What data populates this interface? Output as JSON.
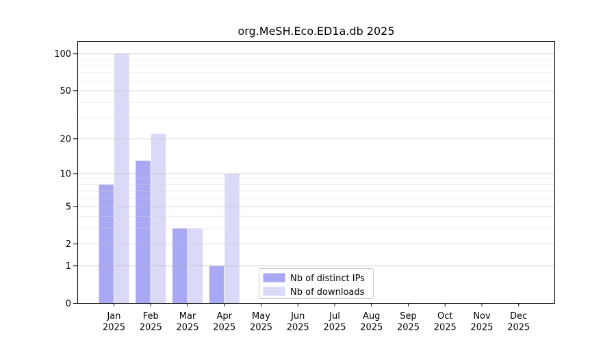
{
  "chart_data": {
    "type": "bar",
    "title": "org.MeSH.Eco.ED1a.db 2025",
    "categories": [
      "Jan",
      "Feb",
      "Mar",
      "Apr",
      "May",
      "Jun",
      "Jul",
      "Aug",
      "Sep",
      "Oct",
      "Nov",
      "Dec"
    ],
    "x_sub_label": "2025",
    "series": [
      {
        "name": "Nb of distinct IPs",
        "color": "#a8a8f4",
        "values": [
          8,
          13,
          3,
          1,
          0,
          0,
          0,
          0,
          0,
          0,
          0,
          0
        ]
      },
      {
        "name": "Nb of downloads",
        "color": "#dadaf8",
        "values": [
          100,
          22,
          3,
          10,
          0,
          0,
          0,
          0,
          0,
          0,
          0,
          0
        ]
      }
    ],
    "y_axis": {
      "scale": "log1p",
      "tick_values": [
        0,
        1,
        2,
        5,
        10,
        20,
        50,
        100
      ],
      "tick_labels": [
        "0",
        "1",
        "2",
        "5",
        "10",
        "20",
        "50",
        "100"
      ],
      "gridlines_major": [
        1,
        10,
        100
      ],
      "gridlines_mid": [
        2,
        5,
        20,
        50
      ],
      "gridlines_minor": [
        3,
        4,
        6,
        7,
        8,
        9,
        30,
        40,
        60,
        70,
        80,
        90
      ],
      "ylim": [
        0,
        127
      ]
    },
    "legend": {
      "position": "bottom-center"
    },
    "grid": true
  },
  "colors": {
    "bar_distinct_ips": "#a8a8f4",
    "bar_downloads": "#dadaf8",
    "axis": "#000000",
    "text": "#000000",
    "grid_major": "#b0b0b0",
    "grid_mid": "#bdbdbd",
    "grid_minor": "#d6d6d6",
    "legend_border": "#c9c9c9",
    "background": "#ffffff"
  }
}
